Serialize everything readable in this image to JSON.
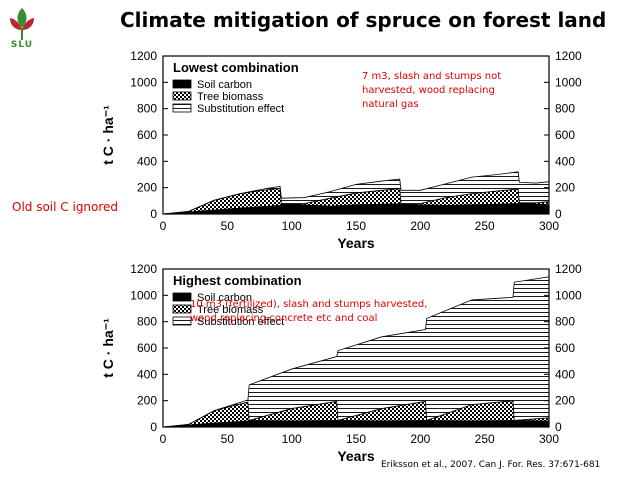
{
  "slide": {
    "title": "Climate mitigation of spruce on forest land",
    "logo_text": "SLU",
    "side_note": "Old soil  C ignored",
    "citation": "Eriksson et al., 2007. Can J. For. Res. 37:671-681",
    "colors": {
      "annotation": "#e00000",
      "logo": "#3a8c2f"
    },
    "logo_icon": "slu-leaf-logo-icon"
  },
  "chart_data": [
    {
      "type": "area",
      "stacked": true,
      "legend_title": "Lowest combination",
      "annotation": [
        "7 m3, slash and stumps not",
        "harvested, wood replacing",
        "natural gas"
      ],
      "xlabel": "Years",
      "ylabel": "t C · ha⁻¹",
      "xlim": [
        0,
        300
      ],
      "ylim": [
        0,
        1200
      ],
      "xticks": [
        "0",
        "50",
        "100",
        "150",
        "200",
        "250",
        "300"
      ],
      "yticks": [
        "0",
        "200",
        "400",
        "600",
        "800",
        "1000",
        "1200"
      ],
      "legend_position": "top-left",
      "series": [
        {
          "name": "Soil carbon",
          "fill": "solid-black",
          "x": [
            0,
            20,
            40,
            60,
            80,
            91,
            92,
            110,
            130,
            150,
            170,
            184,
            185,
            200,
            220,
            240,
            260,
            276,
            277,
            290,
            300
          ],
          "values": [
            0,
            15,
            30,
            45,
            58,
            65,
            80,
            70,
            60,
            70,
            75,
            78,
            80,
            70,
            65,
            70,
            75,
            80,
            85,
            75,
            70
          ]
        },
        {
          "name": "Tree biomass",
          "fill": "checkered",
          "x": [
            0,
            20,
            40,
            60,
            80,
            91,
            92,
            110,
            130,
            150,
            170,
            184,
            185,
            200,
            220,
            240,
            260,
            276,
            277,
            290,
            300
          ],
          "values": [
            0,
            5,
            75,
            110,
            125,
            130,
            0,
            10,
            60,
            90,
            105,
            115,
            0,
            10,
            60,
            85,
            100,
            110,
            0,
            10,
            25
          ]
        },
        {
          "name": "Substitution effect",
          "fill": "horizontal-hatch",
          "x": [
            0,
            20,
            40,
            60,
            80,
            91,
            92,
            110,
            130,
            150,
            170,
            184,
            185,
            200,
            220,
            240,
            260,
            276,
            277,
            290,
            300
          ],
          "values": [
            0,
            0,
            0,
            0,
            10,
            15,
            40,
            45,
            50,
            65,
            70,
            72,
            100,
            100,
            105,
            125,
            125,
            130,
            155,
            150,
            150
          ]
        }
      ]
    },
    {
      "type": "area",
      "stacked": true,
      "legend_title": "Highest combination",
      "annotation": [
        "10 m3 (fertilized), slash and stumps harvested,",
        "wood replacing concrete etc and coal"
      ],
      "xlabel": "Years",
      "ylabel": "t C · ha⁻¹",
      "xlim": [
        0,
        300
      ],
      "ylim": [
        0,
        1200
      ],
      "xticks": [
        "0",
        "50",
        "100",
        "150",
        "200",
        "250",
        "300"
      ],
      "yticks": [
        "0",
        "200",
        "400",
        "600",
        "800",
        "1000",
        "1200"
      ],
      "legend_position": "top-left",
      "series": [
        {
          "name": "Soil carbon",
          "fill": "solid-black",
          "x": [
            0,
            20,
            40,
            66,
            67,
            100,
            135,
            136,
            170,
            204,
            205,
            240,
            272,
            273,
            300
          ],
          "values": [
            0,
            15,
            30,
            45,
            50,
            45,
            50,
            50,
            45,
            50,
            50,
            45,
            50,
            50,
            45
          ]
        },
        {
          "name": "Tree biomass",
          "fill": "checkered",
          "x": [
            0,
            20,
            40,
            66,
            67,
            100,
            135,
            136,
            170,
            204,
            205,
            240,
            272,
            273,
            300
          ],
          "values": [
            0,
            5,
            95,
            145,
            0,
            95,
            145,
            0,
            95,
            145,
            0,
            125,
            150,
            0,
            25
          ]
        },
        {
          "name": "Substitution effect",
          "fill": "horizontal-hatch",
          "x": [
            0,
            20,
            40,
            66,
            67,
            100,
            135,
            136,
            170,
            204,
            205,
            240,
            272,
            273,
            300
          ],
          "values": [
            0,
            0,
            0,
            15,
            270,
            300,
            340,
            530,
            545,
            545,
            775,
            795,
            785,
            1050,
            1070
          ]
        }
      ]
    }
  ]
}
